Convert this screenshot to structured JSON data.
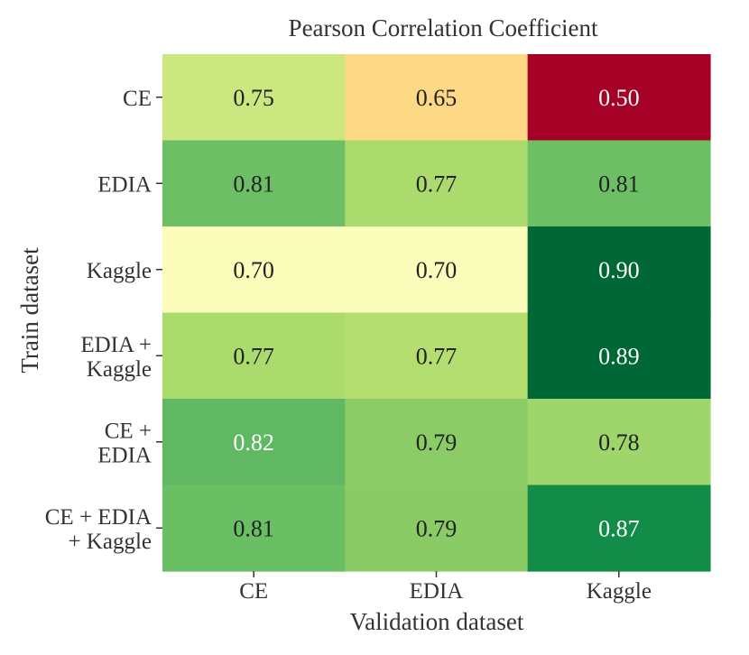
{
  "chart_data": {
    "type": "heatmap",
    "title": "Pearson Correlation Coefficient",
    "xlabel": "Validation dataset",
    "ylabel": "Train dataset",
    "x_categories": [
      "CE",
      "EDIA",
      "Kaggle"
    ],
    "y_categories": [
      [
        "CE"
      ],
      [
        "EDIA"
      ],
      [
        "Kaggle"
      ],
      [
        "EDIA +",
        "Kaggle"
      ],
      [
        "CE +",
        "EDIA"
      ],
      [
        "CE + EDIA",
        "+ Kaggle"
      ]
    ],
    "values": [
      [
        0.75,
        0.65,
        0.5
      ],
      [
        0.81,
        0.77,
        0.81
      ],
      [
        0.7,
        0.7,
        0.9
      ],
      [
        0.77,
        0.77,
        0.89
      ],
      [
        0.82,
        0.79,
        0.78
      ],
      [
        0.81,
        0.79,
        0.87
      ]
    ],
    "cell_labels": [
      [
        "0.75",
        "0.65",
        "0.50"
      ],
      [
        "0.81",
        "0.77",
        "0.81"
      ],
      [
        "0.70",
        "0.70",
        "0.90"
      ],
      [
        "0.77",
        "0.77",
        "0.89"
      ],
      [
        "0.82",
        "0.79",
        "0.78"
      ],
      [
        "0.81",
        "0.79",
        "0.87"
      ]
    ],
    "colormap": "RdYlGn",
    "colors": {
      "cells": [
        [
          "#cbe77f",
          "#fdd885",
          "#a50026"
        ],
        [
          "#6dbf65",
          "#acdb6d",
          "#6dbf65"
        ],
        [
          "#fbfdba",
          "#fbfdba",
          "#006837"
        ],
        [
          "#acdb6d",
          "#b4de70",
          "#006837"
        ],
        [
          "#60b862",
          "#8ccc67",
          "#9fd66b"
        ],
        [
          "#6abe64",
          "#8bcb66",
          "#138c4a"
        ]
      ],
      "text_dark": "#222222",
      "text_light": "#ffffff"
    },
    "light_text_cells": [
      [
        0,
        2
      ],
      [
        2,
        2
      ],
      [
        3,
        2
      ],
      [
        4,
        0
      ],
      [
        5,
        2
      ]
    ]
  }
}
